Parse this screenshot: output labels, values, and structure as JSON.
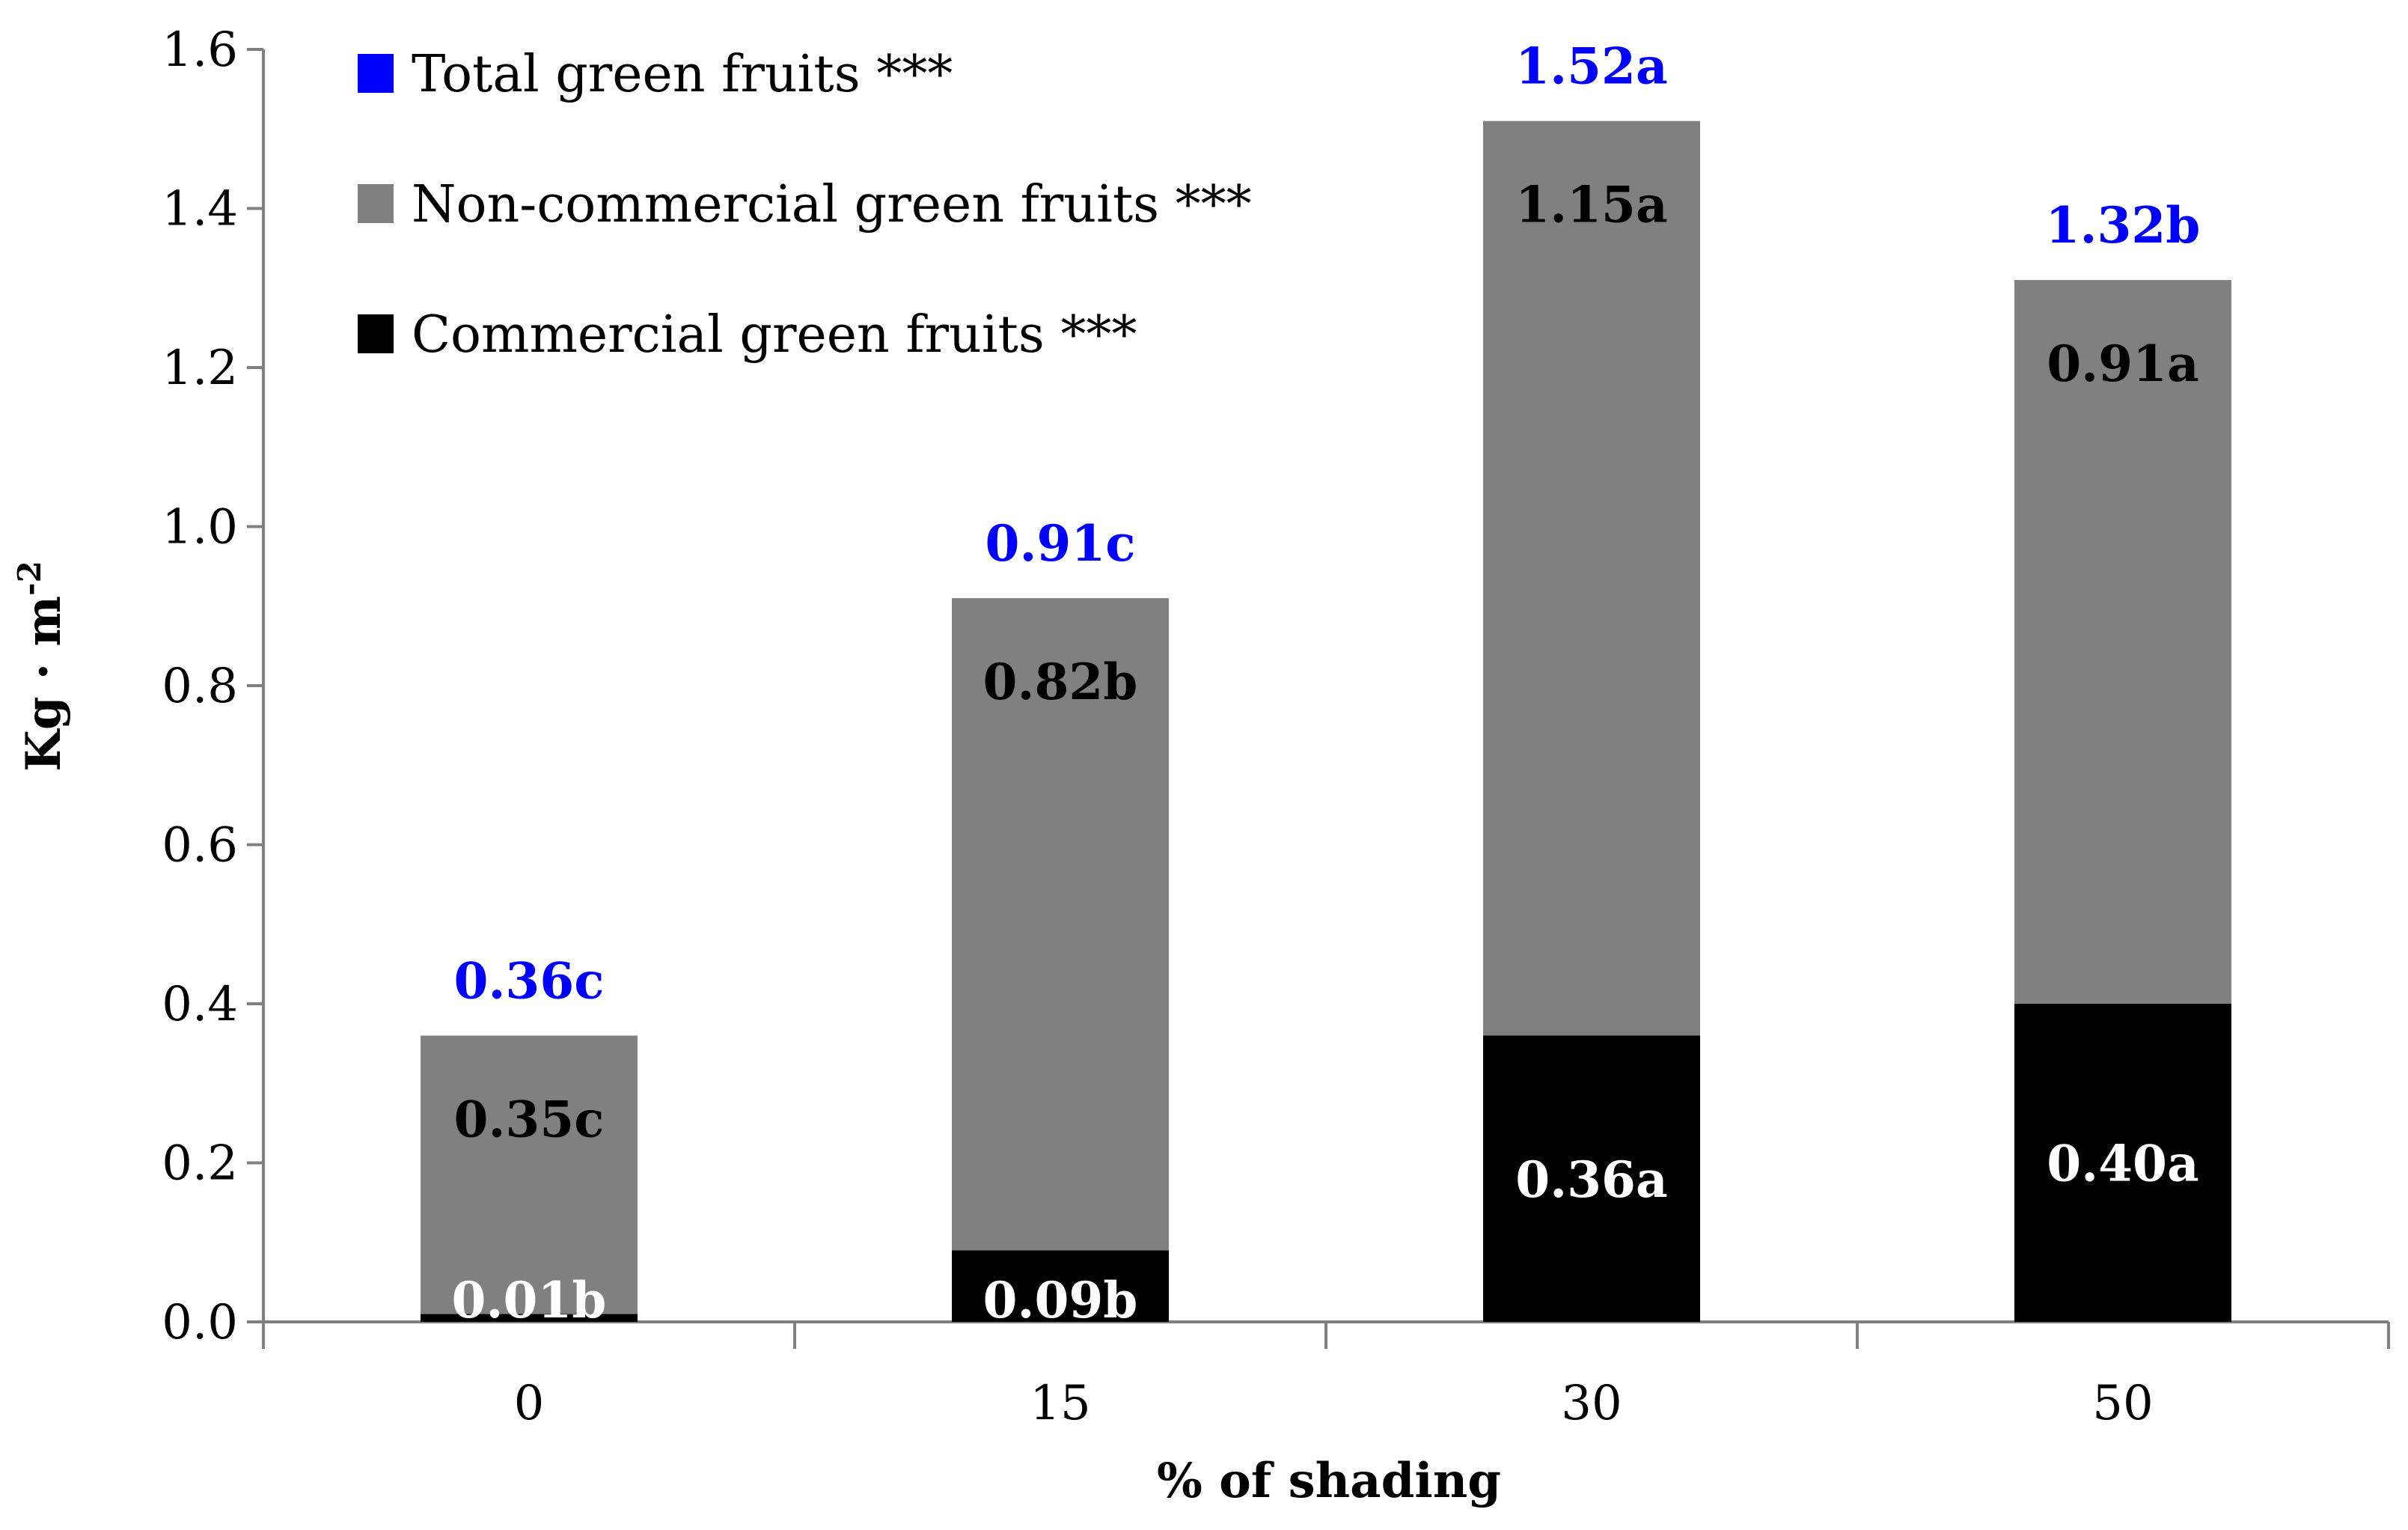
{
  "chart_data": {
    "type": "bar",
    "stacked": true,
    "title": "",
    "xlabel": "% of shading",
    "ylabel": "Kg · m",
    "ylabel_superscript": "-2",
    "ylim": [
      0,
      1.6
    ],
    "yticks": [
      "0.0",
      "0.2",
      "0.4",
      "0.6",
      "0.8",
      "1.0",
      "1.2",
      "1.4",
      "1.6"
    ],
    "categories": [
      "0",
      "15",
      "30",
      "50"
    ],
    "grid": false,
    "legend_position": "top-left",
    "series": [
      {
        "name": "Commercial green fruits ***",
        "color": "#000000",
        "label_color": "#ffffff",
        "values": [
          0.01,
          0.09,
          0.36,
          0.4
        ],
        "labels": [
          "0.01b",
          "0.09b",
          "0.36a",
          "0.40a"
        ]
      },
      {
        "name": "Non-commercial green fruits ***",
        "color": "#808080",
        "label_color": "#000000",
        "values": [
          0.35,
          0.82,
          1.15,
          0.91
        ],
        "labels": [
          "0.35c",
          "0.82b",
          "1.15a",
          "0.91a"
        ]
      }
    ],
    "totals": {
      "name": "Total green fruits ***",
      "color": "#0000ff",
      "values": [
        0.36,
        0.91,
        1.52,
        1.32
      ],
      "labels": [
        "0.36c",
        "0.91c",
        "1.52a",
        "1.32b"
      ]
    }
  }
}
